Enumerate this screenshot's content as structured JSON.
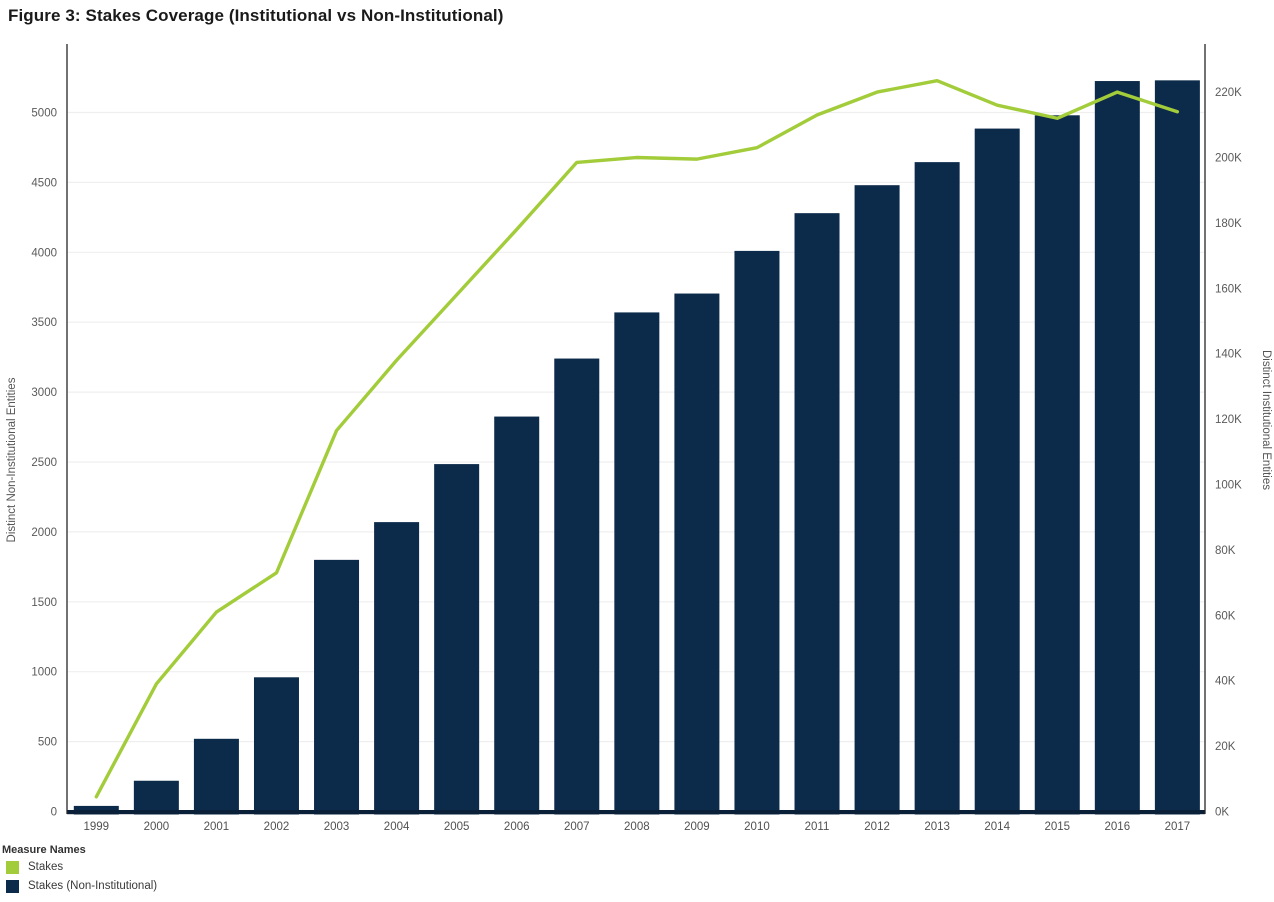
{
  "title": "Figure 3: Stakes Coverage (Institutional vs Non-Institutional)",
  "legend": {
    "title": "Measure Names",
    "items": [
      {
        "label": "Stakes",
        "color": "#a2cc3a"
      },
      {
        "label": "Stakes (Non-Institutional)",
        "color": "#0c2a4a"
      }
    ]
  },
  "colors": {
    "bar": "#0c2a4a",
    "line": "#a2cc3a",
    "gridline": "#efefef",
    "axis_line": "#262626",
    "domain_line": "#0a1f38",
    "tick_text": "#5a5a5a",
    "year_text": "#515151",
    "axis_title_text": "#555555",
    "title_text": "#1a1a1a"
  },
  "chart_data": {
    "type": "combo-bar-line-dual-axis",
    "title": "Figure 3: Stakes Coverage (Institutional vs Non-Institutional)",
    "categories": [
      "1999",
      "2000",
      "2001",
      "2002",
      "2003",
      "2004",
      "2005",
      "2006",
      "2007",
      "2008",
      "2009",
      "2010",
      "2011",
      "2012",
      "2013",
      "2014",
      "2015",
      "2016",
      "2017"
    ],
    "series": [
      {
        "name": "Stakes",
        "type": "line",
        "axis": "right",
        "color": "#a2cc3a",
        "values": [
          4500,
          39000,
          61000,
          73000,
          116500,
          138000,
          158000,
          178000,
          198500,
          200000,
          199500,
          203000,
          213000,
          220000,
          223500,
          216000,
          212000,
          220000,
          214000
        ]
      },
      {
        "name": "Stakes (Non-Institutional)",
        "type": "bar",
        "axis": "left",
        "color": "#0c2a4a",
        "values": [
          40,
          220,
          520,
          960,
          1800,
          2070,
          2485,
          2825,
          3240,
          3570,
          3705,
          4010,
          4280,
          4480,
          4645,
          4885,
          4980,
          5225,
          5230
        ]
      }
    ],
    "left_axis": {
      "label": "Distinct Non-Institutional Entities",
      "ticks": [
        0,
        500,
        1000,
        1500,
        2000,
        2500,
        3000,
        3500,
        4000,
        4500,
        5000
      ],
      "range": [
        0,
        5465
      ]
    },
    "right_axis": {
      "label": "Distinct Institutional Entities",
      "ticks": [
        {
          "value": 0,
          "label": "0K"
        },
        {
          "value": 20000,
          "label": "20K"
        },
        {
          "value": 40000,
          "label": "40K"
        },
        {
          "value": 60000,
          "label": "60K"
        },
        {
          "value": 80000,
          "label": "80K"
        },
        {
          "value": 100000,
          "label": "100K"
        },
        {
          "value": 120000,
          "label": "120K"
        },
        {
          "value": 140000,
          "label": "140K"
        },
        {
          "value": 160000,
          "label": "160K"
        },
        {
          "value": 180000,
          "label": "180K"
        },
        {
          "value": 200000,
          "label": "200K"
        },
        {
          "value": 220000,
          "label": "220K"
        }
      ],
      "range": [
        0,
        233500
      ]
    },
    "xlabel": "",
    "grid": true,
    "legend_position": "bottom-left"
  }
}
